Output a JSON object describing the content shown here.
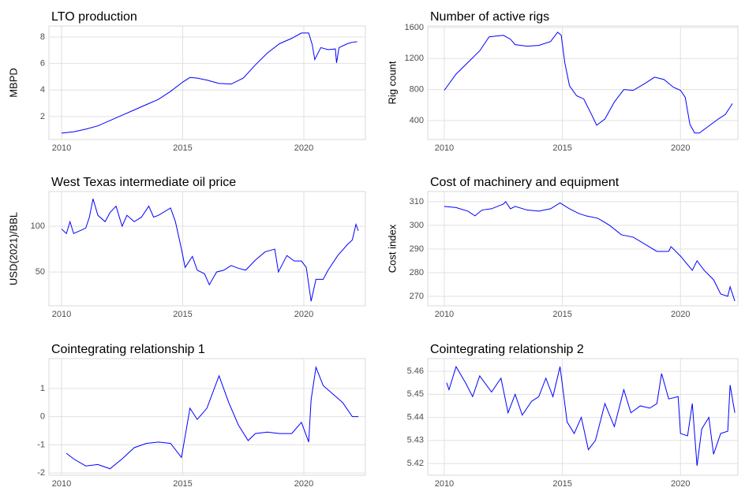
{
  "chart_data": [
    {
      "type": "line",
      "title": "LTO production",
      "ylabel": "MBPD",
      "x": [
        2010.0,
        2010.5,
        2011.0,
        2011.5,
        2012.0,
        2012.5,
        2013.0,
        2013.5,
        2014.0,
        2014.5,
        2015.0,
        2015.3,
        2015.6,
        2016.0,
        2016.5,
        2017.0,
        2017.5,
        2018.0,
        2018.5,
        2019.0,
        2019.5,
        2019.9,
        2020.2,
        2020.35,
        2020.45,
        2020.7,
        2021.0,
        2021.3,
        2021.35,
        2021.45,
        2021.8,
        2022.0,
        2022.2
      ],
      "values": [
        0.75,
        0.85,
        1.05,
        1.3,
        1.7,
        2.1,
        2.5,
        2.9,
        3.3,
        3.9,
        4.6,
        4.95,
        4.9,
        4.75,
        4.5,
        4.45,
        4.9,
        5.9,
        6.8,
        7.5,
        7.9,
        8.3,
        8.3,
        7.4,
        6.3,
        7.2,
        7.05,
        7.1,
        6.05,
        7.2,
        7.5,
        7.6,
        7.65
      ],
      "color": "#0000ff",
      "xlim": [
        2009.48,
        2022.54
      ],
      "ylim": [
        0.27,
        8.83
      ],
      "xticks": [
        2010,
        2015,
        2020
      ],
      "yticks": [
        2,
        4,
        6,
        8
      ],
      "grid": true
    },
    {
      "type": "line",
      "title": "Number of active rigs",
      "ylabel": "Rig count",
      "x": [
        2010.0,
        2010.5,
        2011.0,
        2011.5,
        2011.9,
        2012.5,
        2012.8,
        2013.0,
        2013.5,
        2014.0,
        2014.5,
        2014.8,
        2014.95,
        2015.1,
        2015.3,
        2015.6,
        2015.9,
        2016.2,
        2016.45,
        2016.8,
        2017.2,
        2017.6,
        2018.0,
        2018.5,
        2018.9,
        2019.3,
        2019.7,
        2020.0,
        2020.2,
        2020.4,
        2020.6,
        2020.8,
        2021.2,
        2021.6,
        2021.9,
        2022.2
      ],
      "values": [
        790,
        1000,
        1150,
        1300,
        1480,
        1500,
        1450,
        1380,
        1360,
        1370,
        1420,
        1540,
        1500,
        1150,
        850,
        720,
        680,
        500,
        340,
        420,
        640,
        800,
        790,
        880,
        960,
        930,
        830,
        790,
        700,
        350,
        240,
        240,
        330,
        420,
        480,
        620
      ],
      "color": "#0000ff",
      "xlim": [
        2009.3,
        2022.43
      ],
      "ylim": [
        156,
        1620
      ],
      "xticks": [
        2010,
        2015,
        2020
      ],
      "yticks": [
        400,
        800,
        1200,
        1600
      ],
      "grid": true
    },
    {
      "type": "line",
      "title": "West Texas intermediate oil price",
      "ylabel": "USD(2021)/BBL",
      "x": [
        2010.0,
        2010.2,
        2010.35,
        2010.5,
        2011.0,
        2011.15,
        2011.3,
        2011.5,
        2011.8,
        2012.0,
        2012.25,
        2012.5,
        2012.7,
        2013.0,
        2013.3,
        2013.6,
        2013.8,
        2014.0,
        2014.5,
        2014.7,
        2014.95,
        2015.1,
        2015.4,
        2015.6,
        2015.9,
        2016.1,
        2016.4,
        2016.7,
        2017.0,
        2017.3,
        2017.6,
        2018.0,
        2018.4,
        2018.8,
        2018.95,
        2019.3,
        2019.6,
        2019.9,
        2020.1,
        2020.3,
        2020.5,
        2020.8,
        2021.0,
        2021.4,
        2021.8,
        2022.0,
        2022.15,
        2022.25
      ],
      "values": [
        97,
        92,
        105,
        92,
        98,
        110,
        130,
        112,
        105,
        115,
        122,
        100,
        112,
        105,
        110,
        122,
        110,
        112,
        120,
        105,
        75,
        55,
        67,
        52,
        48,
        36,
        50,
        52,
        57,
        54,
        52,
        63,
        72,
        75,
        50,
        68,
        62,
        62,
        55,
        18,
        42,
        42,
        52,
        68,
        80,
        85,
        102,
        95
      ],
      "color": "#0000ff",
      "xlim": [
        2009.48,
        2022.54
      ],
      "ylim": [
        13,
        138
      ],
      "xticks": [
        2010,
        2015,
        2020
      ],
      "yticks": [
        50,
        100
      ],
      "grid": true
    },
    {
      "type": "line",
      "title": "Cost of machinery and equipment",
      "ylabel": "Cost index",
      "x": [
        2010.0,
        2010.5,
        2011.0,
        2011.3,
        2011.6,
        2012.0,
        2012.5,
        2012.6,
        2012.8,
        2013.0,
        2013.5,
        2014.0,
        2014.5,
        2014.9,
        2015.3,
        2015.7,
        2016.0,
        2016.5,
        2017.0,
        2017.5,
        2018.0,
        2018.5,
        2019.0,
        2019.5,
        2019.6,
        2020.0,
        2020.5,
        2020.7,
        2021.0,
        2021.4,
        2021.7,
        2022.0,
        2022.1,
        2022.3
      ],
      "values": [
        308,
        307.5,
        306,
        304,
        306.5,
        307,
        309,
        310,
        307,
        308,
        306.5,
        306,
        307,
        309.5,
        307,
        305,
        304,
        303,
        300,
        296,
        295,
        292,
        289,
        289,
        291,
        287,
        281,
        285,
        281,
        277,
        271,
        270,
        274,
        268
      ],
      "color": "#0000ff",
      "xlim": [
        2009.3,
        2022.43
      ],
      "ylim": [
        266,
        314.3
      ],
      "xticks": [
        2010,
        2015,
        2020
      ],
      "yticks": [
        270,
        280,
        290,
        300,
        310
      ],
      "grid": true
    },
    {
      "type": "line",
      "title": "Cointegrating relationship 1",
      "x": [
        2010.2,
        2010.5,
        2011.0,
        2011.5,
        2012.0,
        2012.5,
        2013.0,
        2013.5,
        2014.0,
        2014.5,
        2014.95,
        2015.3,
        2015.6,
        2016.0,
        2016.5,
        2016.9,
        2017.3,
        2017.7,
        2018.0,
        2018.5,
        2019.0,
        2019.5,
        2019.9,
        2020.2,
        2020.3,
        2020.5,
        2020.8,
        2021.2,
        2021.6,
        2022.0,
        2022.25
      ],
      "values": [
        -1.3,
        -1.5,
        -1.75,
        -1.7,
        -1.85,
        -1.5,
        -1.1,
        -0.95,
        -0.9,
        -0.95,
        -1.45,
        0.3,
        -0.1,
        0.3,
        1.45,
        0.5,
        -0.3,
        -0.85,
        -0.6,
        -0.55,
        -0.6,
        -0.6,
        -0.2,
        -0.9,
        0.6,
        1.75,
        1.1,
        0.8,
        0.5,
        0.0,
        0.0
      ],
      "color": "#0000ff",
      "xlim": [
        2009.48,
        2022.54
      ],
      "ylim": [
        -2.08,
        2.06
      ],
      "xticks": [
        2010,
        2015,
        2020
      ],
      "yticks": [
        -2,
        -1,
        0,
        1
      ],
      "grid": true
    },
    {
      "type": "line",
      "title": "Cointegrating relationship 2",
      "x": [
        2010.1,
        2010.2,
        2010.5,
        2010.9,
        2011.2,
        2011.5,
        2012.0,
        2012.4,
        2012.7,
        2013.0,
        2013.3,
        2013.7,
        2014.0,
        2014.3,
        2014.6,
        2014.9,
        2015.2,
        2015.5,
        2015.8,
        2016.1,
        2016.4,
        2016.8,
        2017.2,
        2017.6,
        2017.9,
        2018.3,
        2018.7,
        2019.0,
        2019.2,
        2019.5,
        2019.9,
        2020.0,
        2020.3,
        2020.5,
        2020.7,
        2020.9,
        2021.2,
        2021.4,
        2021.7,
        2022.0,
        2022.1,
        2022.3
      ],
      "values": [
        5.455,
        5.452,
        5.462,
        5.455,
        5.449,
        5.458,
        5.451,
        5.457,
        5.442,
        5.45,
        5.441,
        5.447,
        5.449,
        5.457,
        5.449,
        5.462,
        5.438,
        5.433,
        5.44,
        5.426,
        5.43,
        5.446,
        5.436,
        5.452,
        5.442,
        5.445,
        5.444,
        5.446,
        5.459,
        5.448,
        5.449,
        5.433,
        5.432,
        5.446,
        5.419,
        5.435,
        5.44,
        5.424,
        5.433,
        5.434,
        5.454,
        5.442
      ],
      "color": "#0000ff",
      "xlim": [
        2009.3,
        2022.43
      ],
      "ylim": [
        5.4149,
        5.4655
      ],
      "xticks": [
        2010,
        2015,
        2020
      ],
      "yticks": [
        5.42,
        5.43,
        5.44,
        5.45,
        5.46
      ],
      "grid": true
    }
  ]
}
